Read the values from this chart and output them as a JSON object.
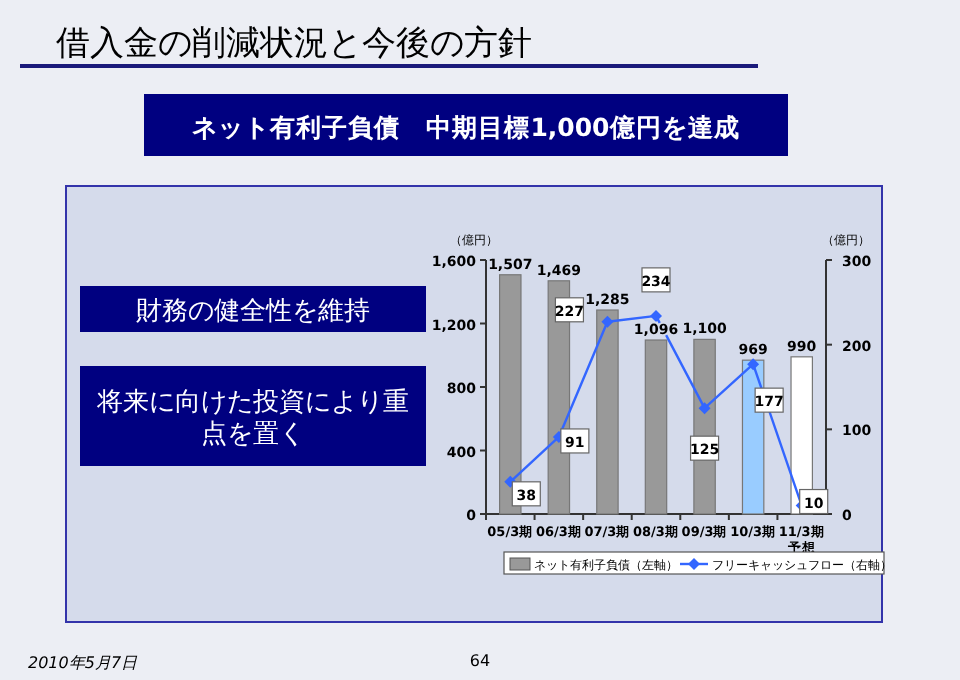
{
  "chart_data": {
    "type": "bar",
    "title": "借入金の削減状況と今後の方針",
    "subtitle": "ネット有利子負債　中期目標1,000億円を達成",
    "categories": [
      "05/3期",
      "06/3期",
      "07/3期",
      "08/3期",
      "09/3期",
      "10/3期",
      "11/3期予想"
    ],
    "series": [
      {
        "name": "ネット有利子負債（左軸）",
        "color": "#999999",
        "colors": [
          "#999999",
          "#999999",
          "#999999",
          "#999999",
          "#999999",
          "#99ccff",
          "#ffffff"
        ],
        "values": [
          1507,
          1469,
          1285,
          1096,
          1100,
          969,
          990
        ],
        "value_labels": [
          "1,507",
          "1,469",
          "1,285",
          "1,096",
          "1,100",
          "969",
          "990"
        ]
      },
      {
        "name": "フリーキャッシュフロー（右軸）",
        "type": "line",
        "axis": "y2",
        "color": "#3366ff",
        "values": [
          38,
          91,
          227,
          234,
          125,
          177,
          10
        ]
      }
    ],
    "ylabel": "（億円）",
    "y2label": "（億円）",
    "ylim": [
      0,
      1600
    ],
    "yticks": [
      0,
      400,
      800,
      {
        "value": 1200,
        "label": "1,200"
      },
      {
        "value": 1600,
        "label": "1,600"
      }
    ],
    "y2lim": [
      0,
      300
    ],
    "y2ticks": [
      0,
      100,
      200,
      300
    ],
    "data_labels": true,
    "legend": "bottom",
    "marker": "diamond",
    "grid": false,
    "annotations": [
      "財務の健全性を維持",
      "将来に向けた投資により重点を置く",
      "2010年5月7日",
      "64"
    ]
  }
}
